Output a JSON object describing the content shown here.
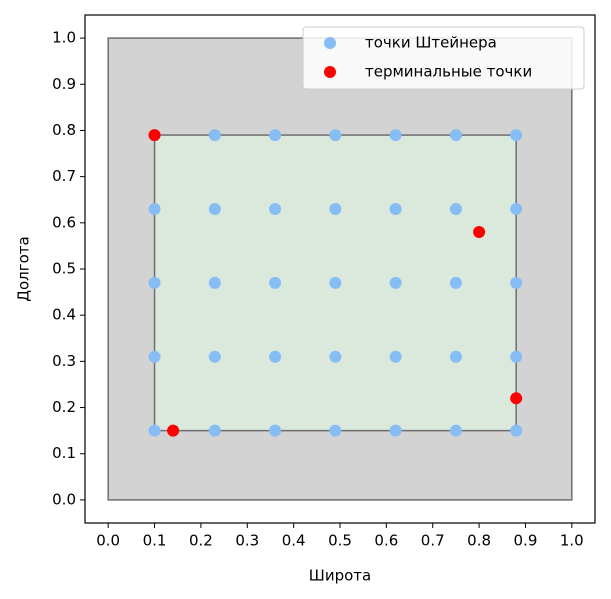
{
  "chart_data": {
    "type": "scatter",
    "xlabel": "Широта",
    "ylabel": "Долгота",
    "xlim": [
      -0.05,
      1.05
    ],
    "ylim": [
      -0.05,
      1.05
    ],
    "xticks": [
      {
        "value": 0,
        "label": "0.0"
      },
      0.1,
      0.2,
      0.3,
      0.4,
      0.5,
      0.6,
      0.7,
      0.8,
      0.9,
      {
        "value": 1,
        "label": "1.0"
      }
    ],
    "yticks": [
      {
        "value": 0,
        "label": "0.0"
      },
      0.1,
      0.2,
      0.3,
      0.4,
      0.5,
      0.6,
      0.7,
      0.8,
      0.9,
      {
        "value": 1,
        "label": "1.0"
      }
    ],
    "regions": [
      {
        "x": [
          0,
          1
        ],
        "y": [
          0,
          1
        ],
        "color": "#d3d3d3"
      },
      {
        "x": [
          0.1,
          0.88
        ],
        "y": [
          0.15,
          0.79
        ],
        "color": "#dbe8dc"
      }
    ],
    "legend": "upper right",
    "series": [
      {
        "name": "точки Штейнера",
        "color": "#87bdf5",
        "x": [
          0.1,
          0.23,
          0.36,
          0.49,
          0.62,
          0.75,
          0.88,
          0.1,
          0.23,
          0.36,
          0.49,
          0.62,
          0.75,
          0.88,
          0.1,
          0.23,
          0.36,
          0.49,
          0.62,
          0.75,
          0.88,
          0.1,
          0.23,
          0.36,
          0.49,
          0.62,
          0.75,
          0.88,
          0.1,
          0.23,
          0.36,
          0.49,
          0.62,
          0.75,
          0.88
        ],
        "y": [
          0.15,
          0.15,
          0.15,
          0.15,
          0.15,
          0.15,
          0.15,
          0.31,
          0.31,
          0.31,
          0.31,
          0.31,
          0.31,
          0.31,
          0.47,
          0.47,
          0.47,
          0.47,
          0.47,
          0.47,
          0.47,
          0.63,
          0.63,
          0.63,
          0.63,
          0.63,
          0.63,
          0.63,
          0.79,
          0.79,
          0.79,
          0.79,
          0.79,
          0.79,
          0.79
        ]
      },
      {
        "name": "терминальные точки",
        "color": "#ff0000",
        "x": [
          0.1,
          0.14,
          0.8,
          0.88
        ],
        "y": [
          0.79,
          0.15,
          0.58,
          0.22
        ]
      }
    ]
  }
}
